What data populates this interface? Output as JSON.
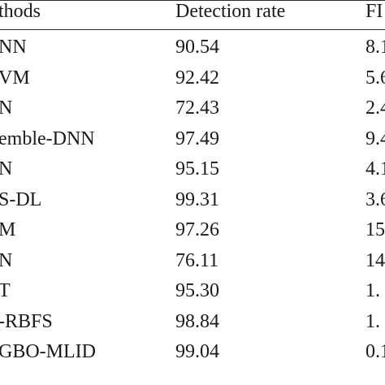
{
  "table": {
    "headers": [
      "thods",
      "Detection rate",
      "FI"
    ],
    "rows": [
      {
        "method": "NN",
        "rate": "90.54",
        "fpr": "8.1"
      },
      {
        "method": "VM",
        "rate": "92.42",
        "fpr": "5.6"
      },
      {
        "method": "N",
        "rate": "72.43",
        "fpr": "2.4"
      },
      {
        "method": "emble-DNN",
        "rate": "97.49",
        "fpr": "9.4"
      },
      {
        "method": "N",
        "rate": "95.15",
        "fpr": "4.1"
      },
      {
        "method": "S-DL",
        "rate": "99.31",
        "fpr": "3.6"
      },
      {
        "method": "M",
        "rate": "97.26",
        "fpr": "15"
      },
      {
        "method": "N",
        "rate": "76.11",
        "fpr": "14"
      },
      {
        "method": "T",
        "rate": "95.30",
        "fpr": "1."
      },
      {
        "method": "-RBFS",
        "rate": "98.84",
        "fpr": "1."
      },
      {
        "method": "GBO-MLID",
        "rate": "99.04",
        "fpr": "0.1"
      }
    ]
  }
}
